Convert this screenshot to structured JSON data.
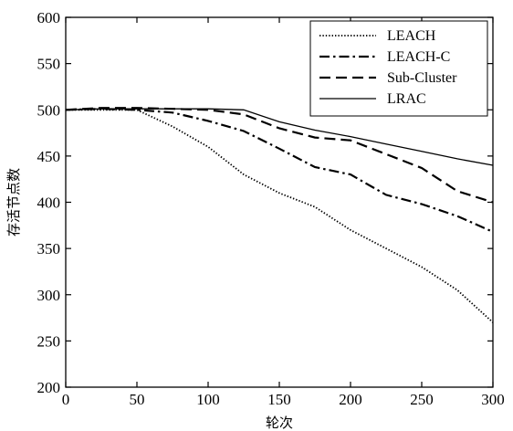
{
  "chart_data": {
    "type": "line",
    "xlabel": "轮次",
    "ylabel": "存活节点数",
    "xlim": [
      0,
      300
    ],
    "ylim": [
      200,
      600
    ],
    "xticks": [
      0,
      50,
      100,
      150,
      200,
      250,
      300
    ],
    "yticks": [
      200,
      250,
      300,
      350,
      400,
      450,
      500,
      550,
      600
    ],
    "grid": false,
    "legend_position": "top-right",
    "series": [
      {
        "name": "LEACH",
        "style": "dotted",
        "x": [
          0,
          25,
          50,
          75,
          100,
          125,
          150,
          175,
          200,
          225,
          250,
          275,
          300
        ],
        "y": [
          500,
          500,
          500,
          482,
          460,
          430,
          410,
          395,
          370,
          350,
          330,
          305,
          270
        ]
      },
      {
        "name": "LEACH-C",
        "style": "dashdot",
        "x": [
          0,
          25,
          50,
          75,
          100,
          125,
          150,
          175,
          200,
          225,
          250,
          275,
          300
        ],
        "y": [
          500,
          501,
          500,
          497,
          488,
          477,
          458,
          438,
          430,
          408,
          398,
          385,
          368
        ]
      },
      {
        "name": "Sub-Cluster",
        "style": "dashed",
        "x": [
          0,
          25,
          50,
          75,
          100,
          125,
          150,
          175,
          200,
          225,
          250,
          275,
          300
        ],
        "y": [
          500,
          502,
          502,
          501,
          500,
          495,
          480,
          470,
          467,
          452,
          437,
          412,
          400
        ]
      },
      {
        "name": "LRAC",
        "style": "solid",
        "x": [
          0,
          25,
          50,
          75,
          100,
          125,
          150,
          175,
          200,
          225,
          250,
          275,
          300
        ],
        "y": [
          500,
          501,
          501,
          501,
          501,
          500,
          487,
          478,
          471,
          463,
          455,
          447,
          440
        ]
      }
    ]
  }
}
